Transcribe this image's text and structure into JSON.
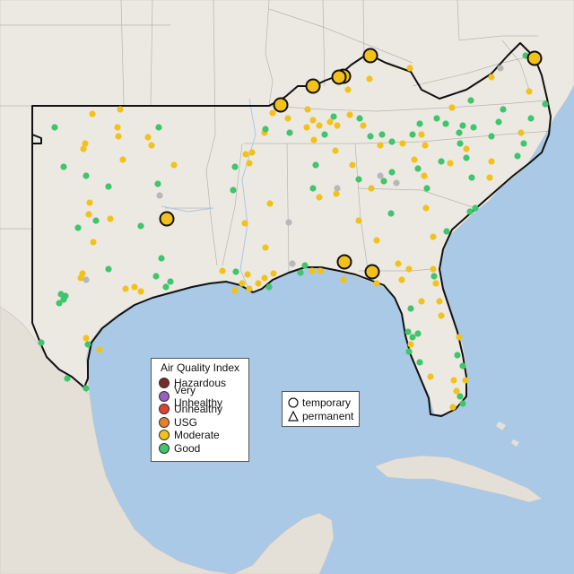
{
  "colors": {
    "ocean": "#a9c9e6",
    "land": "#ece9e3",
    "good": "#3fc56b",
    "moderate": "#f2c21b",
    "unhealthy_sensitive": "#e8802a",
    "unhealthy": "#e0402f",
    "very_unhealthy": "#9a5fc0",
    "hazardous": "#7a2a2a",
    "no_data": "#b8b8b8",
    "outline": "#111111"
  },
  "legend": {
    "title": "Air Quality Index",
    "items": [
      {
        "label": "Hazardous",
        "color": "#7a2a2a"
      },
      {
        "label": "Very Unhealthy",
        "color": "#9a5fc0"
      },
      {
        "label": "Unhealthy",
        "color": "#e0402f"
      },
      {
        "label": "USG",
        "color": "#e8802a"
      },
      {
        "label": "Moderate",
        "color": "#f2c21b"
      },
      {
        "label": "Good",
        "color": "#3fc56b"
      }
    ]
  },
  "site_legend": {
    "items": [
      {
        "label": "temporary",
        "shape": "circle-icon"
      },
      {
        "label": "permanent",
        "shape": "triangle-icon"
      }
    ]
  }
}
